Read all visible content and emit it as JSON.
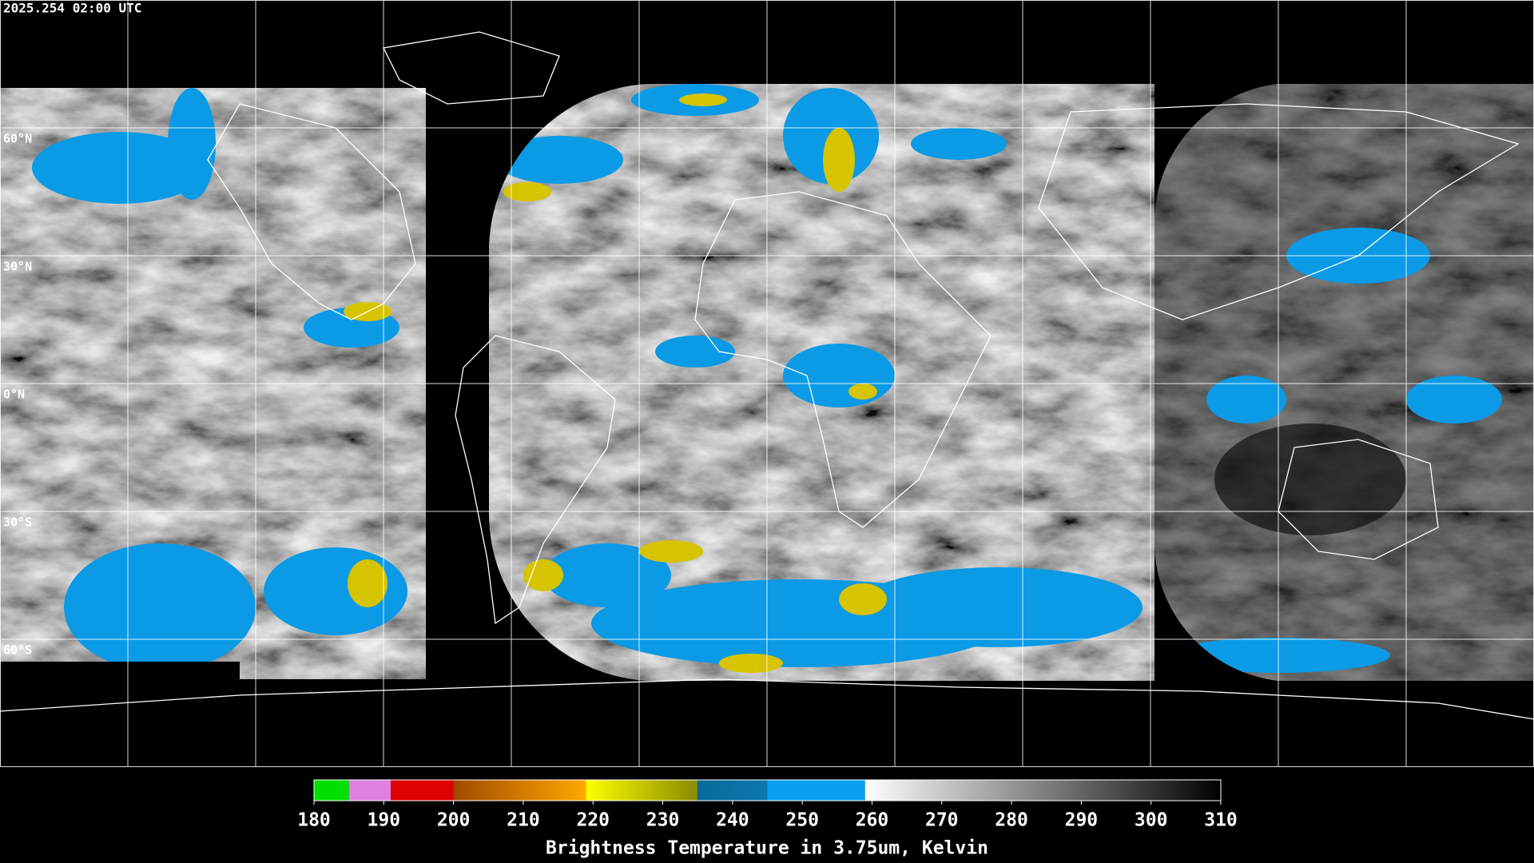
{
  "timestamp": "2025.254 02:00 UTC",
  "lat_labels": [
    "60°N",
    "30°N",
    "0°N",
    "30°S",
    "60°S"
  ],
  "colorbar": {
    "title": "Brightness Temperature in 3.75um, Kelvin",
    "lim": [
      180,
      310
    ],
    "ticks": [
      180,
      190,
      200,
      210,
      220,
      230,
      240,
      250,
      260,
      270,
      280,
      290,
      300,
      310
    ],
    "segments": [
      {
        "from": 180,
        "to": 185,
        "colors": [
          "#00e000",
          "#00e000"
        ]
      },
      {
        "from": 185,
        "to": 191,
        "colors": [
          "#e080e0",
          "#e080e0"
        ]
      },
      {
        "from": 191,
        "to": 200,
        "colors": [
          "#e00000",
          "#e00000"
        ]
      },
      {
        "from": 200,
        "to": 219,
        "colors": [
          "#a04a00",
          "#ffa800"
        ]
      },
      {
        "from": 219,
        "to": 235,
        "colors": [
          "#ffff00",
          "#8a8a00"
        ]
      },
      {
        "from": 235,
        "to": 245,
        "colors": [
          "#0a6a9a",
          "#0a78b0"
        ]
      },
      {
        "from": 245,
        "to": 259,
        "colors": [
          "#0aa0f0",
          "#0aa0f0"
        ]
      },
      {
        "from": 259,
        "to": 310,
        "colors": [
          "#ffffff",
          "#000000"
        ]
      }
    ]
  }
}
